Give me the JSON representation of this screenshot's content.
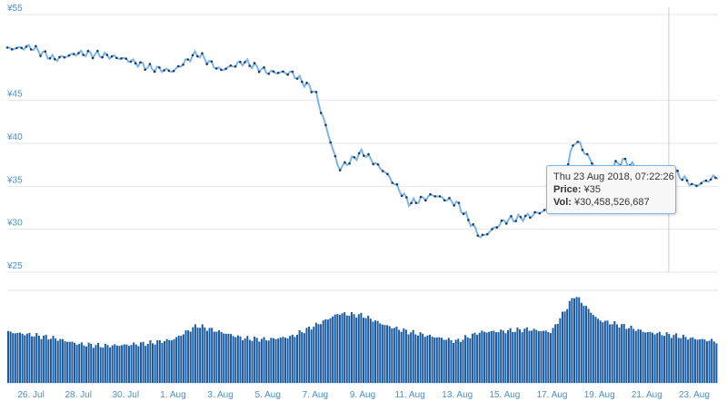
{
  "chart_data": [
    {
      "type": "line",
      "name": "price",
      "ylim": [
        25,
        55
      ],
      "yticks": [
        "¥55",
        "¥45",
        "¥40",
        "¥35",
        "¥30",
        "¥25"
      ],
      "ytick_values": [
        55,
        45,
        40,
        35,
        30,
        25
      ],
      "xlabels": [
        "26. Jul",
        "28. Jul",
        "30. Jul",
        "1. Aug",
        "3. Aug",
        "5. Aug",
        "7. Aug",
        "9. Aug",
        "11. Aug",
        "13. Aug",
        "15. Aug",
        "17. Aug",
        "19. Aug",
        "21. Aug",
        "23. Aug"
      ],
      "x": [
        "2018-07-25",
        "2018-07-26",
        "2018-07-27",
        "2018-07-28",
        "2018-07-29",
        "2018-07-30",
        "2018-07-31",
        "2018-08-01",
        "2018-08-02",
        "2018-08-03",
        "2018-08-04",
        "2018-08-05",
        "2018-08-06",
        "2018-08-07",
        "2018-08-08",
        "2018-08-09",
        "2018-08-10",
        "2018-08-11",
        "2018-08-12",
        "2018-08-13",
        "2018-08-14",
        "2018-08-15",
        "2018-08-16",
        "2018-08-17",
        "2018-08-18",
        "2018-08-19",
        "2018-08-20",
        "2018-08-21",
        "2018-08-22",
        "2018-08-23",
        "2018-08-24"
      ],
      "values": [
        51.0,
        51.2,
        49.8,
        50.5,
        50.3,
        49.8,
        48.8,
        48.4,
        50.5,
        48.5,
        49.5,
        48.3,
        48.2,
        46.0,
        37.0,
        39.0,
        36.5,
        33.0,
        34.0,
        33.0,
        29.0,
        31.0,
        31.5,
        32.5,
        40.5,
        36.5,
        38.0,
        36.5,
        37.0,
        35.0,
        36.2
      ],
      "line_color": "#7cb5ec",
      "marker_color": "#1f3b5c"
    },
    {
      "type": "bar",
      "name": "volume",
      "x": [
        "2018-07-25",
        "2018-07-26",
        "2018-07-27",
        "2018-07-28",
        "2018-07-29",
        "2018-07-30",
        "2018-07-31",
        "2018-08-01",
        "2018-08-02",
        "2018-08-03",
        "2018-08-04",
        "2018-08-05",
        "2018-08-06",
        "2018-08-07",
        "2018-08-08",
        "2018-08-09",
        "2018-08-10",
        "2018-08-11",
        "2018-08-12",
        "2018-08-13",
        "2018-08-14",
        "2018-08-15",
        "2018-08-16",
        "2018-08-17",
        "2018-08-18",
        "2018-08-19",
        "2018-08-20",
        "2018-08-21",
        "2018-08-22",
        "2018-08-23",
        "2018-08-24"
      ],
      "values": [
        0.55,
        0.52,
        0.48,
        0.42,
        0.4,
        0.41,
        0.43,
        0.47,
        0.62,
        0.55,
        0.48,
        0.47,
        0.5,
        0.62,
        0.75,
        0.73,
        0.62,
        0.55,
        0.5,
        0.45,
        0.55,
        0.56,
        0.58,
        0.55,
        0.95,
        0.68,
        0.62,
        0.55,
        0.52,
        0.48,
        0.45
      ],
      "color": "#1a5aa0"
    }
  ],
  "tooltip": {
    "date": "Thu 23 Aug 2018, 07:22:26",
    "price_label": "Price:",
    "price_value": "¥35",
    "vol_label": "Vol:",
    "vol_value": "¥30,458,526,687"
  },
  "hover_index": 29,
  "colors": {
    "grid": "#e6e6e6",
    "tick_text": "#4a90c8",
    "tooltip_border": "#7cb5ec",
    "crosshair": "#cccccc"
  }
}
